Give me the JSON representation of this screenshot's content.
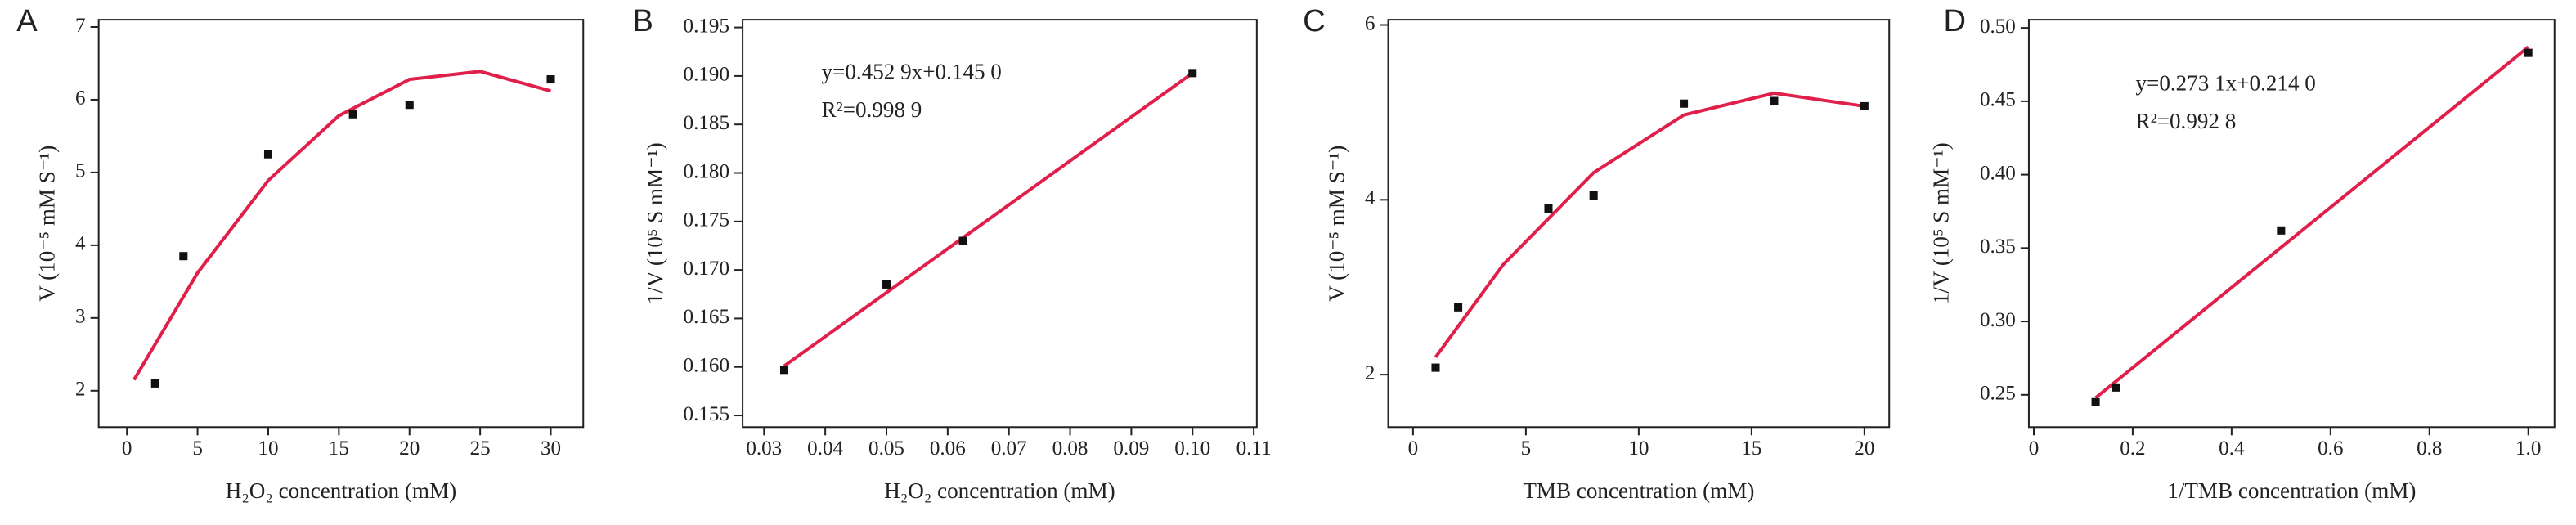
{
  "chart_data": [
    {
      "type": "scatter",
      "title": "A",
      "xlabel": "H₂O₂ concentration (mM)",
      "ylabel": "V (10⁻⁵ mM S⁻¹)",
      "xlim": [
        -2,
        32.3
      ],
      "ylim": [
        1.5,
        7.1
      ],
      "xticks": [
        0,
        5,
        10,
        15,
        20,
        25,
        30
      ],
      "yticks": [
        2,
        3,
        4,
        5,
        6,
        7
      ],
      "x": [
        2,
        4,
        10,
        16,
        20,
        30
      ],
      "values": [
        2.1,
        3.85,
        5.25,
        5.8,
        5.93,
        6.28
      ],
      "fit_x": [
        0.5,
        5,
        10,
        15,
        20,
        25,
        30
      ],
      "fit_values": [
        2.15,
        3.62,
        4.89,
        5.78,
        6.28,
        6.39,
        6.12
      ],
      "marker_color": "#111111",
      "fit_color": "#e0204a"
    },
    {
      "type": "scatter",
      "title": "B",
      "xlabel": "H₂O₂ concentration (mM)",
      "ylabel": "1/V (10⁵ S mM⁻¹)",
      "xlim": [
        0.0265,
        0.1105
      ],
      "ylim": [
        0.1538,
        0.1958
      ],
      "xticks": [
        0.03,
        0.04,
        0.05,
        0.06,
        0.07,
        0.08,
        0.09,
        {
          "value": 0.1,
          "label": "0.10"
        },
        0.11
      ],
      "yticks": [
        0.155,
        {
          "value": 0.16,
          "label": "0.160"
        },
        0.165,
        {
          "value": 0.17,
          "label": "0.170"
        },
        0.175,
        {
          "value": 0.18,
          "label": "0.180"
        },
        0.185,
        {
          "value": 0.19,
          "label": "0.190"
        },
        0.195
      ],
      "x": [
        0.0333,
        0.05,
        0.0625,
        0.1
      ],
      "values": [
        0.1597,
        0.1685,
        0.173,
        0.1903
      ],
      "fit_x": [
        0.0333,
        0.1
      ],
      "fit_values": [
        0.1601,
        0.1903
      ],
      "annotations": [
        "y=0.452 9x+0.145 0",
        "R²=0.998 9"
      ],
      "marker_color": "#111111",
      "fit_color": "#e0204a"
    },
    {
      "type": "scatter",
      "title": "C",
      "xlabel": "TMB concentration (mM)",
      "ylabel": "V (10⁻⁵ mM S⁻¹)",
      "xlim": [
        -1.1,
        21.1
      ],
      "ylim": [
        1.4,
        6.06
      ],
      "xticks": [
        0,
        5,
        10,
        15,
        20
      ],
      "yticks": [
        2,
        4,
        6
      ],
      "x": [
        1,
        2,
        6,
        8,
        12,
        16,
        20
      ],
      "values": [
        2.08,
        2.77,
        3.9,
        4.05,
        5.1,
        5.13,
        5.07
      ],
      "fit_x": [
        1,
        4,
        8,
        12,
        16,
        20
      ],
      "fit_values": [
        2.2,
        3.26,
        4.31,
        4.97,
        5.22,
        5.07
      ],
      "marker_color": "#111111",
      "fit_color": "#e0204a"
    },
    {
      "type": "scatter",
      "title": "D",
      "xlabel": "1/TMB concentration (mM)",
      "ylabel": "1/V (10⁵ S mM⁻¹)",
      "xlim": [
        -0.01,
        1.053
      ],
      "ylim": [
        0.228,
        0.5056
      ],
      "xticks": [
        0,
        0.2,
        0.4,
        0.6,
        0.8,
        {
          "value": 1,
          "label": "1.0"
        }
      ],
      "yticks": [
        0.25,
        {
          "value": 0.3,
          "label": "0.30"
        },
        0.35,
        {
          "value": 0.4,
          "label": "0.40"
        },
        0.45,
        {
          "value": 0.5,
          "label": "0.50"
        }
      ],
      "x": [
        0.125,
        0.167,
        0.5,
        1
      ],
      "values": [
        0.245,
        0.255,
        0.362,
        0.483
      ],
      "fit_x": [
        0.125,
        1
      ],
      "fit_values": [
        0.248,
        0.487
      ],
      "annotations": [
        "y=0.273 1x+0.214 0",
        "R²=0.992 8"
      ],
      "marker_color": "#111111",
      "fit_color": "#e0204a"
    }
  ]
}
